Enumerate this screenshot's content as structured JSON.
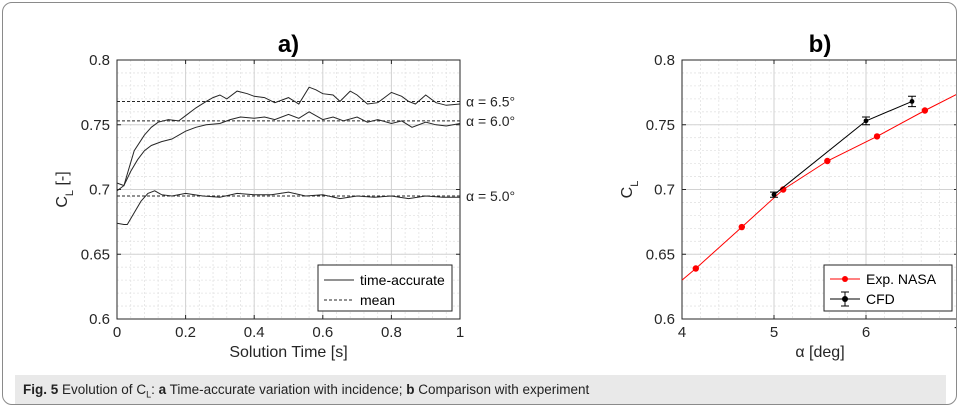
{
  "chart_data": [
    {
      "type": "line",
      "title": "a)",
      "xlabel": "Solution Time [s]",
      "ylabel": "C",
      "ylabel_sub": "L",
      "ylabel_suffix": " [-]",
      "xlim": [
        0,
        1
      ],
      "ylim": [
        0.6,
        0.8
      ],
      "xticks": [
        0,
        0.2,
        0.4,
        0.6,
        0.8,
        1
      ],
      "xtick_labels": [
        "0",
        "0.2",
        "0.4",
        "0.6",
        "0.8",
        "1"
      ],
      "yticks": [
        0.6,
        0.65,
        0.7,
        0.75,
        0.8
      ],
      "ytick_labels": [
        "0.6",
        "0.65",
        "0.7",
        "0.75",
        "0.8"
      ],
      "grid": true,
      "minor_grid": true,
      "legend": {
        "position": "bottom-right",
        "entries": [
          {
            "label": "time-accurate",
            "style": "solid"
          },
          {
            "label": "mean",
            "style": "dashed"
          }
        ]
      },
      "annotations": [
        "α = 6.5°",
        "α = 6.0°",
        "α = 5.0°"
      ],
      "series": [
        {
          "alpha": 6.5,
          "style": "solid",
          "mean": 0.768,
          "x": [
            0,
            0.02,
            0.03,
            0.05,
            0.08,
            0.1,
            0.12,
            0.15,
            0.18,
            0.2,
            0.23,
            0.26,
            0.28,
            0.3,
            0.32,
            0.35,
            0.38,
            0.4,
            0.43,
            0.46,
            0.5,
            0.53,
            0.56,
            0.58,
            0.6,
            0.63,
            0.65,
            0.68,
            0.7,
            0.73,
            0.76,
            0.8,
            0.83,
            0.85,
            0.87,
            0.9,
            0.93,
            0.96,
            1.0
          ],
          "y": [
            0.705,
            0.703,
            0.712,
            0.73,
            0.742,
            0.748,
            0.752,
            0.754,
            0.753,
            0.757,
            0.763,
            0.768,
            0.771,
            0.773,
            0.77,
            0.776,
            0.774,
            0.772,
            0.771,
            0.767,
            0.771,
            0.766,
            0.779,
            0.777,
            0.774,
            0.773,
            0.768,
            0.776,
            0.773,
            0.766,
            0.767,
            0.775,
            0.772,
            0.768,
            0.766,
            0.773,
            0.767,
            0.765,
            0.766
          ]
        },
        {
          "alpha": 6.0,
          "style": "solid",
          "mean": 0.753,
          "x": [
            0,
            0.02,
            0.04,
            0.06,
            0.08,
            0.1,
            0.13,
            0.16,
            0.2,
            0.23,
            0.26,
            0.3,
            0.33,
            0.36,
            0.4,
            0.43,
            0.46,
            0.5,
            0.53,
            0.56,
            0.6,
            0.63,
            0.66,
            0.7,
            0.73,
            0.76,
            0.8,
            0.83,
            0.86,
            0.9,
            0.93,
            0.96,
            1.0
          ],
          "y": [
            0.699,
            0.703,
            0.714,
            0.723,
            0.73,
            0.734,
            0.737,
            0.739,
            0.745,
            0.748,
            0.75,
            0.751,
            0.754,
            0.756,
            0.755,
            0.756,
            0.754,
            0.758,
            0.755,
            0.76,
            0.754,
            0.756,
            0.753,
            0.756,
            0.752,
            0.754,
            0.751,
            0.753,
            0.748,
            0.752,
            0.75,
            0.749,
            0.751
          ]
        },
        {
          "alpha": 5.0,
          "style": "solid",
          "mean": 0.695,
          "x": [
            0,
            0.02,
            0.03,
            0.05,
            0.07,
            0.09,
            0.11,
            0.13,
            0.16,
            0.2,
            0.25,
            0.3,
            0.35,
            0.4,
            0.45,
            0.5,
            0.55,
            0.6,
            0.65,
            0.7,
            0.75,
            0.8,
            0.85,
            0.9,
            0.95,
            1.0
          ],
          "y": [
            0.674,
            0.673,
            0.673,
            0.682,
            0.691,
            0.697,
            0.699,
            0.696,
            0.695,
            0.697,
            0.695,
            0.694,
            0.697,
            0.696,
            0.696,
            0.698,
            0.695,
            0.696,
            0.693,
            0.695,
            0.694,
            0.695,
            0.693,
            0.695,
            0.694,
            0.694
          ]
        }
      ]
    },
    {
      "type": "line",
      "title": "b)",
      "xlabel": "α [deg]",
      "ylabel": "C",
      "ylabel_sub": "L",
      "xlim": [
        4,
        7
      ],
      "ylim": [
        0.6,
        0.8
      ],
      "xticks": [
        4,
        5,
        6,
        7
      ],
      "xtick_labels": [
        "4",
        "5",
        "6",
        "7"
      ],
      "yticks": [
        0.6,
        0.65,
        0.7,
        0.75,
        0.8
      ],
      "ytick_labels": [
        "0.6",
        "0.65",
        "0.7",
        "0.75",
        "0.8"
      ],
      "grid": true,
      "minor_grid": true,
      "legend": {
        "position": "bottom-right",
        "entries": [
          {
            "label": "Exp. NASA",
            "color": "#ff0000"
          },
          {
            "label": "CFD",
            "color": "#000000"
          }
        ]
      },
      "series": [
        {
          "name": "Exp. NASA",
          "color": "#ff0000",
          "line_x": [
            4.0,
            4.15,
            4.65,
            5.1,
            5.58,
            6.12,
            6.64,
            7.0
          ],
          "line_y": [
            0.63,
            0.639,
            0.671,
            0.7,
            0.722,
            0.741,
            0.761,
            0.774
          ],
          "x": [
            4.15,
            4.65,
            5.1,
            5.58,
            6.12,
            6.64
          ],
          "y": [
            0.639,
            0.671,
            0.7,
            0.722,
            0.741,
            0.761
          ]
        },
        {
          "name": "CFD",
          "color": "#000000",
          "x": [
            5.0,
            6.0,
            6.5
          ],
          "y": [
            0.696,
            0.753,
            0.768
          ],
          "err": [
            0.002,
            0.003,
            0.004
          ]
        }
      ]
    }
  ],
  "caption": {
    "label": "Fig. 5",
    "text_1": " Evolution of C",
    "sub": "L",
    "text_2": ": ",
    "a": "a",
    "text_3": " Time-accurate variation with incidence; ",
    "b": "b",
    "text_4": " Comparison with experiment"
  },
  "colors": {
    "exp": "#ff0000",
    "cfd": "#000000",
    "caption_bg": "#e9e9e9"
  }
}
